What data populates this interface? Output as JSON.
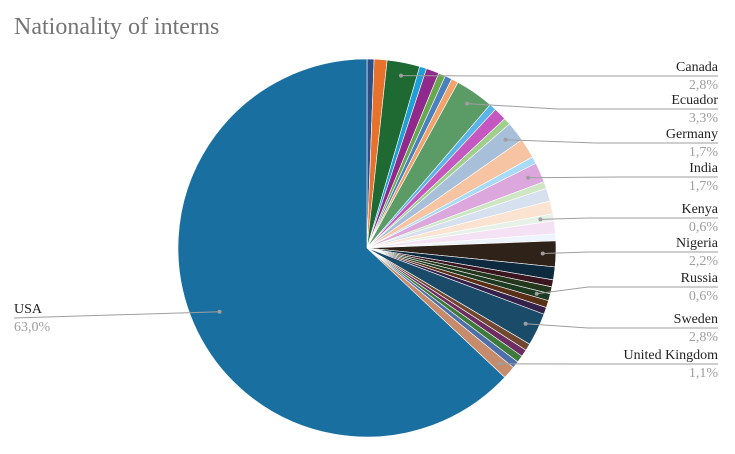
{
  "chart_data": {
    "type": "pie",
    "title": "Nationality of interns",
    "slices": [
      {
        "label": "",
        "value": 0.6,
        "color": "#2c4f86"
      },
      {
        "label": "",
        "value": 1.1,
        "color": "#e8722c"
      },
      {
        "label": "Canada",
        "value_text": "2,8%",
        "value": 2.8,
        "color": "#1e6a32",
        "labeled": true
      },
      {
        "label": "",
        "value": 0.6,
        "color": "#1d9fd8"
      },
      {
        "label": "",
        "value": 1.1,
        "color": "#8f2a8c"
      },
      {
        "label": "",
        "value": 0.6,
        "color": "#6aa84f"
      },
      {
        "label": "",
        "value": 0.6,
        "color": "#4a80bd"
      },
      {
        "label": "",
        "value": 0.6,
        "color": "#f1a36a"
      },
      {
        "label": "Ecuador",
        "value_text": "3,3%",
        "value": 3.3,
        "color": "#5b9b65",
        "labeled": true
      },
      {
        "label": "",
        "value": 0.6,
        "color": "#59b4e9"
      },
      {
        "label": "",
        "value": 1.1,
        "color": "#c557c0"
      },
      {
        "label": "",
        "value": 0.6,
        "color": "#9fcf8a"
      },
      {
        "label": "Germany",
        "value_text": "1,7%",
        "value": 1.7,
        "color": "#a7bfd9",
        "labeled": true
      },
      {
        "label": "",
        "value": 1.7,
        "color": "#f6c4a3"
      },
      {
        "label": "",
        "value": 0.6,
        "color": "#a8dcf6"
      },
      {
        "label": "India",
        "value_text": "1,7%",
        "value": 1.7,
        "color": "#dba7dc",
        "labeled": true
      },
      {
        "label": "",
        "value": 0.6,
        "color": "#cfe6c4"
      },
      {
        "label": "",
        "value": 1.1,
        "color": "#d6e0ee"
      },
      {
        "label": "",
        "value": 1.1,
        "color": "#fbe3d2"
      },
      {
        "label": "Kenya",
        "value_text": "0,6%",
        "value": 0.6,
        "color": "#e6f2e8",
        "labeled": true
      },
      {
        "label": "",
        "value": 1.1,
        "color": "#f5e1f4"
      },
      {
        "label": "",
        "value": 0.6,
        "color": "#eef4fb"
      },
      {
        "label": "Nigeria",
        "value_text": "2,2%",
        "value": 2.2,
        "color": "#2e2219",
        "labeled": true
      },
      {
        "label": "",
        "value": 1.1,
        "color": "#0e2a3e"
      },
      {
        "label": "",
        "value": 0.6,
        "color": "#3a1620"
      },
      {
        "label": "",
        "value": 0.6,
        "color": "#24381e"
      },
      {
        "label": "Russia",
        "value_text": "0,6%",
        "value": 0.6,
        "color": "#1d3a22",
        "labeled": true
      },
      {
        "label": "",
        "value": 0.6,
        "color": "#5a2f18"
      },
      {
        "label": "",
        "value": 0.6,
        "color": "#34224a"
      },
      {
        "label": "Sweden",
        "value_text": "2,8%",
        "value": 2.8,
        "color": "#1a4c6a",
        "labeled": true
      },
      {
        "label": "",
        "value": 0.6,
        "color": "#71482f"
      },
      {
        "label": "",
        "value": 0.6,
        "color": "#6c2d63"
      },
      {
        "label": "",
        "value": 0.6,
        "color": "#3e7a3a"
      },
      {
        "label": "",
        "value": 0.6,
        "color": "#4f6fa8"
      },
      {
        "label": "United Kingdom",
        "value_text": "1,1%",
        "value": 1.1,
        "color": "#c58b6b",
        "labeled": true
      },
      {
        "label": "USA",
        "value_text": "63,0%",
        "value": 63.0,
        "color": "#1a6fa1",
        "labeled": true
      }
    ]
  }
}
